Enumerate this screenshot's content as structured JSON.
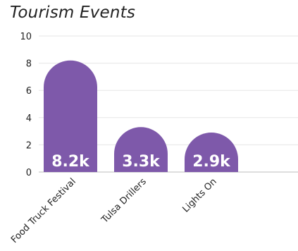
{
  "chart_data": {
    "type": "bar",
    "title": "Tourism Events",
    "categories": [
      "Food Truck Festival",
      "Tulsa Drillers",
      "Lights On"
    ],
    "values": [
      8.2,
      3.3,
      2.9
    ],
    "data_labels": [
      "8.2k",
      "3.3k",
      "2.9k"
    ],
    "yticks": [
      0,
      2,
      4,
      6,
      8,
      10
    ],
    "ylim": [
      0,
      10
    ],
    "xlabel": "",
    "ylabel": "",
    "grid": true,
    "bar_style": "rounded-top"
  },
  "colors": {
    "bar": "#7e59aa",
    "grid": "#e6e6e6",
    "axis": "#bdbdbd",
    "label": "#222222",
    "data_label": "#ffffff"
  }
}
